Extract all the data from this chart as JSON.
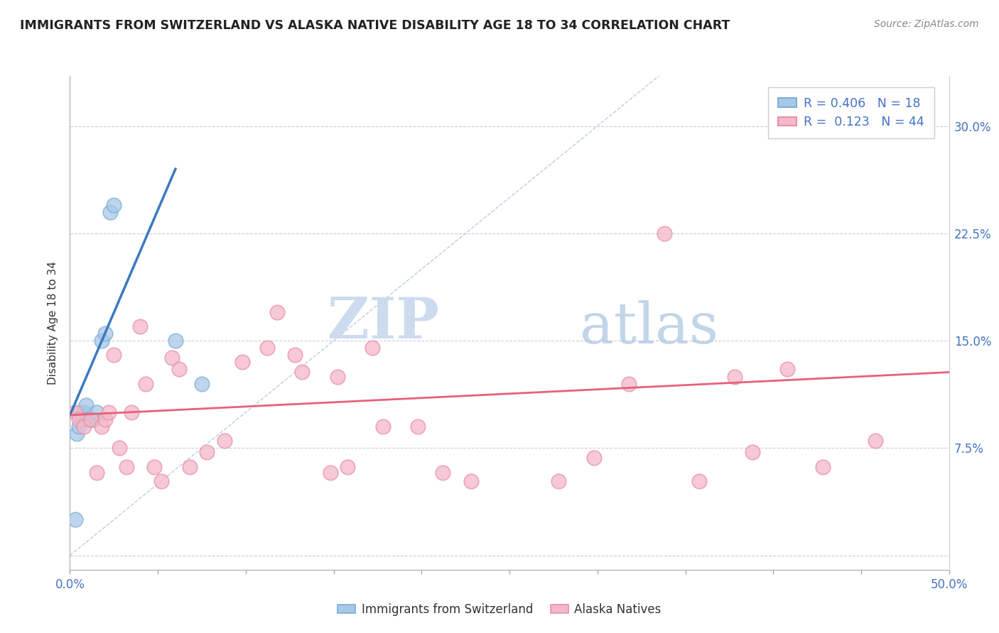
{
  "title": "IMMIGRANTS FROM SWITZERLAND VS ALASKA NATIVE DISABILITY AGE 18 TO 34 CORRELATION CHART",
  "source": "Source: ZipAtlas.com",
  "ylabel": "Disability Age 18 to 34",
  "xlim": [
    0.0,
    0.5
  ],
  "ylim": [
    -0.01,
    0.335
  ],
  "xticks": [
    0.0,
    0.05,
    0.1,
    0.15,
    0.2,
    0.25,
    0.3,
    0.35,
    0.4,
    0.45,
    0.5
  ],
  "xticklabels": [
    "0.0%",
    "",
    "",
    "",
    "",
    "",
    "",
    "",
    "",
    "",
    "50.0%"
  ],
  "yticks": [
    0.0,
    0.075,
    0.15,
    0.225,
    0.3
  ],
  "yticklabels": [
    "",
    "7.5%",
    "15.0%",
    "22.5%",
    "30.0%"
  ],
  "legend_r1": "R = 0.406",
  "legend_n1": "N = 18",
  "legend_r2": "R =  0.123",
  "legend_n2": "N = 44",
  "blue_color": "#a8c8e8",
  "pink_color": "#f4b8c8",
  "blue_edge_color": "#7bafd4",
  "pink_edge_color": "#e890a8",
  "blue_line_color": "#3a7abf",
  "pink_line_color": "#e8607a",
  "ref_line_color": "#a8c0e0",
  "tick_color": "#4472c4",
  "watermark_zip": "ZIP",
  "watermark_atlas": "atlas",
  "blue_scatter_x": [
    0.003,
    0.004,
    0.005,
    0.006,
    0.007,
    0.008,
    0.009,
    0.01,
    0.011,
    0.012,
    0.013,
    0.015,
    0.018,
    0.02,
    0.023,
    0.025,
    0.06,
    0.075
  ],
  "blue_scatter_y": [
    0.025,
    0.085,
    0.09,
    0.1,
    0.095,
    0.1,
    0.105,
    0.095,
    0.095,
    0.095,
    0.095,
    0.1,
    0.15,
    0.155,
    0.24,
    0.245,
    0.15,
    0.12
  ],
  "pink_scatter_x": [
    0.003,
    0.005,
    0.008,
    0.012,
    0.015,
    0.018,
    0.02,
    0.022,
    0.025,
    0.028,
    0.032,
    0.035,
    0.04,
    0.043,
    0.048,
    0.052,
    0.058,
    0.062,
    0.068,
    0.078,
    0.088,
    0.098,
    0.112,
    0.118,
    0.128,
    0.132,
    0.148,
    0.152,
    0.158,
    0.172,
    0.178,
    0.198,
    0.212,
    0.228,
    0.278,
    0.298,
    0.318,
    0.338,
    0.358,
    0.378,
    0.388,
    0.408,
    0.428,
    0.458
  ],
  "pink_scatter_y": [
    0.1,
    0.095,
    0.09,
    0.095,
    0.058,
    0.09,
    0.095,
    0.1,
    0.14,
    0.075,
    0.062,
    0.1,
    0.16,
    0.12,
    0.062,
    0.052,
    0.138,
    0.13,
    0.062,
    0.072,
    0.08,
    0.135,
    0.145,
    0.17,
    0.14,
    0.128,
    0.058,
    0.125,
    0.062,
    0.145,
    0.09,
    0.09,
    0.058,
    0.052,
    0.052,
    0.068,
    0.12,
    0.225,
    0.052,
    0.125,
    0.072,
    0.13,
    0.062,
    0.08
  ],
  "blue_trend_x": [
    0.0,
    0.06
  ],
  "blue_trend_y": [
    0.098,
    0.27
  ],
  "pink_trend_x": [
    0.0,
    0.5
  ],
  "pink_trend_y": [
    0.098,
    0.128
  ],
  "ref_line_x": [
    0.0,
    0.335
  ],
  "ref_line_y": [
    0.0,
    0.335
  ]
}
